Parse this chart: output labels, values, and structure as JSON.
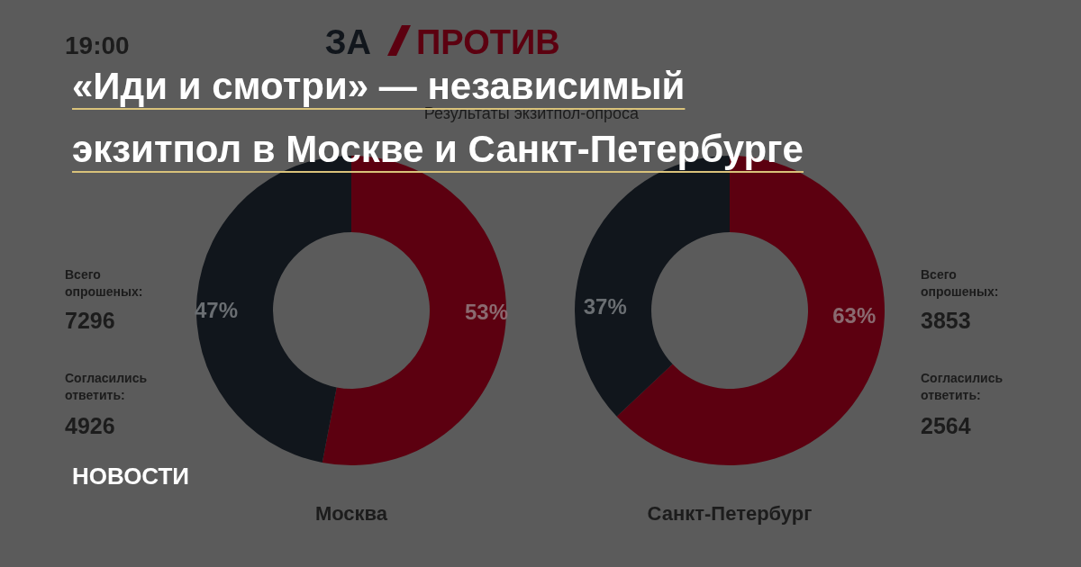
{
  "chart_data": [
    {
      "type": "donut",
      "title": "«Иди и смотри» —  независимый экзитпол в Москве и Санкт-Петербурге",
      "subtitle": "Результаты экзитпол-опроса",
      "xlabel": "Москва",
      "categories": [
        null,
        null
      ],
      "values": [
        53,
        47
      ],
      "colors": [
        "#5c0010",
        "#11161c"
      ],
      "value_labels": [
        "53%",
        "47%"
      ],
      "annotations": [
        "19:00",
        "ЗА",
        "ПРОТИВ",
        "Всего опрошеных:",
        "7296",
        "Согласились ответить:",
        "4926",
        "НОВОСТИ"
      ]
    },
    {
      "type": "donut",
      "xlabel": "Санкт-Петербург",
      "categories": [
        null,
        null
      ],
      "values": [
        63,
        37
      ],
      "colors": [
        "#5c0010",
        "#11161c"
      ],
      "value_labels": [
        "63%",
        "37%"
      ],
      "annotations": [
        "Всего опрошеных:",
        "3853",
        "Согласились ответить:",
        "2564"
      ]
    }
  ]
}
